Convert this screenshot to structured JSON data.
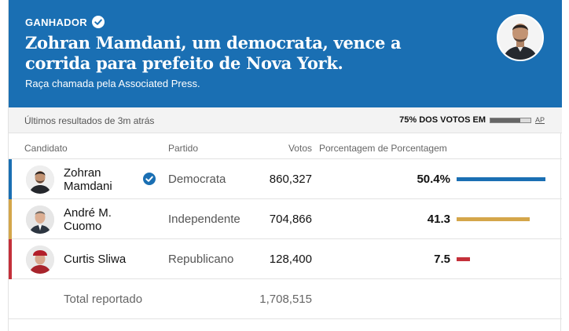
{
  "header": {
    "winner_label": "GANHADOR",
    "headline": "Zohran Mamdani, um democrata, vence a corrida para prefeito de Nova York.",
    "called_by": "Raça chamada pela Associated Press.",
    "background_color": "#1a6fb3"
  },
  "status": {
    "updated": "Últimos resultados de 3m atrás",
    "reporting_label": "75% DOS VOTOS EM",
    "reporting_fraction": 0.75,
    "source_link": "AP"
  },
  "table": {
    "columns": {
      "candidate": "Candidato",
      "party": "Partido",
      "votes": "Votos",
      "percent": "Porcentagem de Porcentagem"
    },
    "rows": [
      {
        "name": "Zohran Mamdani",
        "party": "Democrata",
        "votes": "860,327",
        "percent": "50.4%",
        "percent_value": 50.4,
        "color": "#1a6fb3",
        "winner": true
      },
      {
        "name": "André M. Cuomo",
        "party": "Independente",
        "votes": "704,866",
        "percent": "41.3",
        "percent_value": 41.3,
        "color": "#d4a64a",
        "winner": false
      },
      {
        "name": "Curtis Sliwa",
        "party": "Republicano",
        "votes": "128,400",
        "percent": "7.5",
        "percent_value": 7.5,
        "color": "#c4303a",
        "winner": false
      }
    ],
    "total_label": "Total reportado",
    "total_votes": "1,708,515"
  }
}
